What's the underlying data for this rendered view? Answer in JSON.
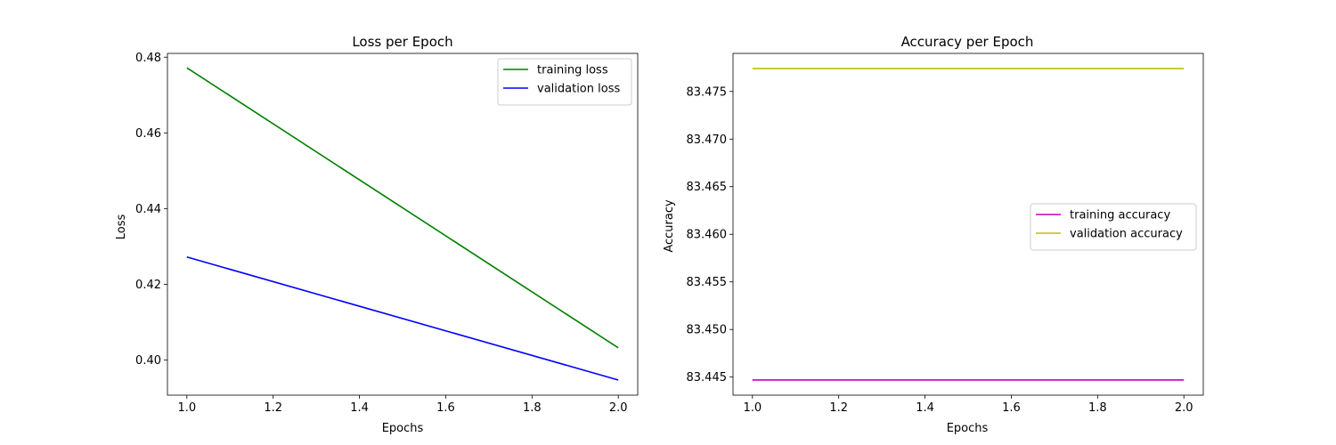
{
  "chart_data": [
    {
      "type": "line",
      "title": "Loss per Epoch",
      "xlabel": "Epochs",
      "ylabel": "Loss",
      "xlim": [
        0.955,
        2.045
      ],
      "ylim": [
        0.3907,
        0.481
      ],
      "xticks": [
        1.0,
        1.2,
        1.4,
        1.6,
        1.8,
        2.0
      ],
      "xtick_labels": [
        "1.0",
        "1.2",
        "1.4",
        "1.6",
        "1.8",
        "2.0"
      ],
      "yticks": [
        0.4,
        0.42,
        0.44,
        0.46,
        0.48
      ],
      "ytick_labels": [
        "0.40",
        "0.42",
        "0.44",
        "0.46",
        "0.48"
      ],
      "grid": false,
      "legend_position": "upper right",
      "series": [
        {
          "name": "training loss",
          "color": "#008000",
          "x": [
            1.0,
            2.0
          ],
          "y": [
            0.4772,
            0.4032
          ]
        },
        {
          "name": "validation loss",
          "color": "#0000ff",
          "x": [
            1.0,
            2.0
          ],
          "y": [
            0.4272,
            0.3947
          ]
        }
      ]
    },
    {
      "type": "line",
      "title": "Accuracy per Epoch",
      "xlabel": "Epochs",
      "ylabel": "Accuracy",
      "xlim": [
        0.955,
        2.045
      ],
      "ylim": [
        83.4431,
        83.479
      ],
      "xticks": [
        1.0,
        1.2,
        1.4,
        1.6,
        1.8,
        2.0
      ],
      "xtick_labels": [
        "1.0",
        "1.2",
        "1.4",
        "1.6",
        "1.8",
        "2.0"
      ],
      "yticks": [
        83.445,
        83.45,
        83.455,
        83.46,
        83.465,
        83.47,
        83.475
      ],
      "ytick_labels": [
        "83.445",
        "83.450",
        "83.455",
        "83.460",
        "83.465",
        "83.470",
        "83.475"
      ],
      "grid": false,
      "legend_position": "center right",
      "series": [
        {
          "name": "training accuracy",
          "color": "#bf00bf",
          "x": [
            1.0,
            2.0
          ],
          "y": [
            83.4447,
            83.4447
          ]
        },
        {
          "name": "validation accuracy",
          "color": "#bfbf00",
          "x": [
            1.0,
            2.0
          ],
          "y": [
            83.4774,
            83.4774
          ]
        }
      ]
    }
  ]
}
